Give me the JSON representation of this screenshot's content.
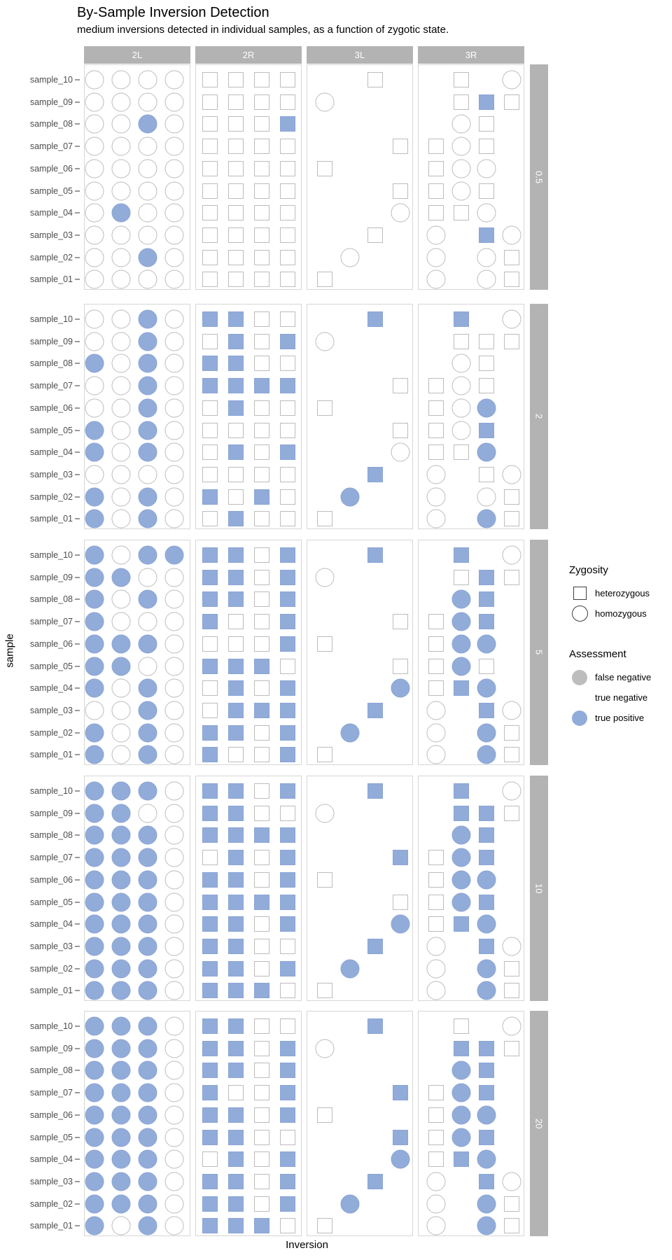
{
  "header": {
    "title": "By-Sample Inversion Detection",
    "subtitle": "medium inversions detected in individual samples, as a function of zygotic state."
  },
  "axes": {
    "x_title": "Inversion",
    "y_title": "sample"
  },
  "legend": {
    "zygosity": {
      "title": "Zygosity",
      "items": [
        {
          "label": "heterozygous",
          "shape": "square"
        },
        {
          "label": "homozygous",
          "shape": "circle"
        }
      ]
    },
    "assessment": {
      "title": "Assessment",
      "items": [
        {
          "label": "false negative",
          "color": "#bdbdbd"
        },
        {
          "label": "true negative",
          "color": "#ffffff"
        },
        {
          "label": "true positive",
          "color": "#92acda"
        }
      ]
    }
  },
  "colors": {
    "true_positive": "#92acda",
    "true_negative": "#ffffff",
    "false_negative": "#bdbdbd",
    "marker_outline": "#bcbcbc",
    "strip_background": "#b3b3b3",
    "strip_text": "#ffffff",
    "panel_border": "#d6d6d6",
    "axis_label_text": "#4d4d4d"
  },
  "chart_data": {
    "type": "scatter",
    "title": "By-Sample Inversion Detection",
    "subtitle": "medium inversions detected in individual samples, as a function of zygotic state.",
    "xlabel": "Inversion",
    "ylabel": "sample",
    "facet_cols": [
      "2L",
      "2R",
      "3L",
      "3R"
    ],
    "facet_rows": [
      "0.5",
      "2",
      "5",
      "10",
      "20"
    ],
    "samples_top_to_bottom": [
      "sample_10",
      "sample_09",
      "sample_08",
      "sample_07",
      "sample_06",
      "sample_05",
      "sample_04",
      "sample_03",
      "sample_02",
      "sample_01"
    ],
    "slots_per_panel": 4,
    "encoding": {
      ".": "no marker",
      "s": "heterozygous square, true negative (white)",
      "S": "heterozygous square, true positive (blue)",
      "o": "homozygous circle, true negative (white)",
      "O": "homozygous circle, true positive (blue)"
    },
    "cells": {
      "0.5": {
        "2L": [
          "oooo",
          "oooo",
          "ooOo",
          "oooo",
          "oooo",
          "oooo",
          "oOoo",
          "oooo",
          "ooOo",
          "oooo"
        ],
        "2R": [
          "ssss",
          "ssss",
          "sssS",
          "ssss",
          "ssss",
          "ssss",
          "ssss",
          "ssss",
          "ssss",
          "ssss"
        ],
        "3L": [
          "..s.",
          "o...",
          "....",
          "...s",
          "s...",
          "...s",
          "...o",
          "..s.",
          ".o..",
          "s..."
        ],
        "3R": [
          ".s.o",
          ".sSs",
          ".os.",
          "sos.",
          "soo.",
          "sos.",
          "sso.",
          "o.So",
          "o.os",
          "o.os"
        ]
      },
      "2": {
        "2L": [
          "ooOo",
          "ooOo",
          "OoOo",
          "ooOo",
          "ooOo",
          "OoOo",
          "OoOo",
          "oooo",
          "OoOo",
          "OoOo"
        ],
        "2R": [
          "SSss",
          "sSsS",
          "SSss",
          "SSSS",
          "sSss",
          "ssss",
          "sSsS",
          "ssss",
          "SsSs",
          "sSss"
        ],
        "3L": [
          "..S.",
          "o...",
          "....",
          "...s",
          "s...",
          "...s",
          "...o",
          "..S.",
          ".O..",
          "s..."
        ],
        "3R": [
          ".S.o",
          ".sss",
          ".os.",
          "sos.",
          "soO.",
          "soS.",
          "ssO.",
          "o.so",
          "o.os",
          "o.Os"
        ]
      },
      "5": {
        "2L": [
          "OoOO",
          "OOoo",
          "OoOo",
          "Oooo",
          "OOOo",
          "OOoo",
          "OoOo",
          "ooOo",
          "OoOo",
          "OoOo"
        ],
        "2R": [
          "SSsS",
          "SSsS",
          "SSsS",
          "SssS",
          "sssS",
          "SSSs",
          "sSsS",
          "sSSS",
          "SSsS",
          "SssS"
        ],
        "3L": [
          "..S.",
          "o...",
          "....",
          "...s",
          "s...",
          "...s",
          "...O",
          "..S.",
          ".O..",
          "s..."
        ],
        "3R": [
          ".S.o",
          ".sSs",
          ".OS.",
          "sOS.",
          "sOO.",
          "sOs.",
          "sSO.",
          "o.So",
          "o.Os",
          "o.Os"
        ]
      },
      "10": {
        "2L": [
          "OOOo",
          "OOoo",
          "OOOo",
          "OOOo",
          "OOOo",
          "OOOo",
          "OOOo",
          "OOOo",
          "OOOo",
          "OOOo"
        ],
        "2R": [
          "SSsS",
          "SSss",
          "SSSS",
          "sSsS",
          "SSsS",
          "SSSS",
          "SSsS",
          "SSss",
          "SSsS",
          "SSSs"
        ],
        "3L": [
          "..S.",
          "o...",
          "....",
          "...S",
          "s...",
          "...s",
          "...O",
          "..S.",
          ".O..",
          "s..."
        ],
        "3R": [
          ".S.o",
          ".SSs",
          ".OS.",
          "sOS.",
          "sOO.",
          "sOS.",
          "sSO.",
          "o.So",
          "o.Os",
          "o.Os"
        ]
      },
      "20": {
        "2L": [
          "OOOo",
          "OOOo",
          "OOOo",
          "OOOo",
          "OOOo",
          "OOOo",
          "OOOo",
          "OOOo",
          "OOOo",
          "OoOo"
        ],
        "2R": [
          "SSss",
          "SSsS",
          "SSsS",
          "SssS",
          "SSsS",
          "SSss",
          "sSsS",
          "SSsS",
          "SSsS",
          "SSSs"
        ],
        "3L": [
          "..S.",
          "o...",
          "....",
          "...S",
          "s...",
          "...S",
          "...O",
          "..S.",
          ".O..",
          "s..."
        ],
        "3R": [
          ".s.o",
          ".SSs",
          ".OS.",
          "sOS.",
          "sOO.",
          "sOS.",
          "sSO.",
          "o.So",
          "o.Os",
          "o.Os"
        ]
      }
    },
    "layout_hints": {
      "facet_row_strip_side": "right",
      "facet_col_strip_side": "top",
      "grid": "off",
      "legend_position": "right"
    }
  }
}
